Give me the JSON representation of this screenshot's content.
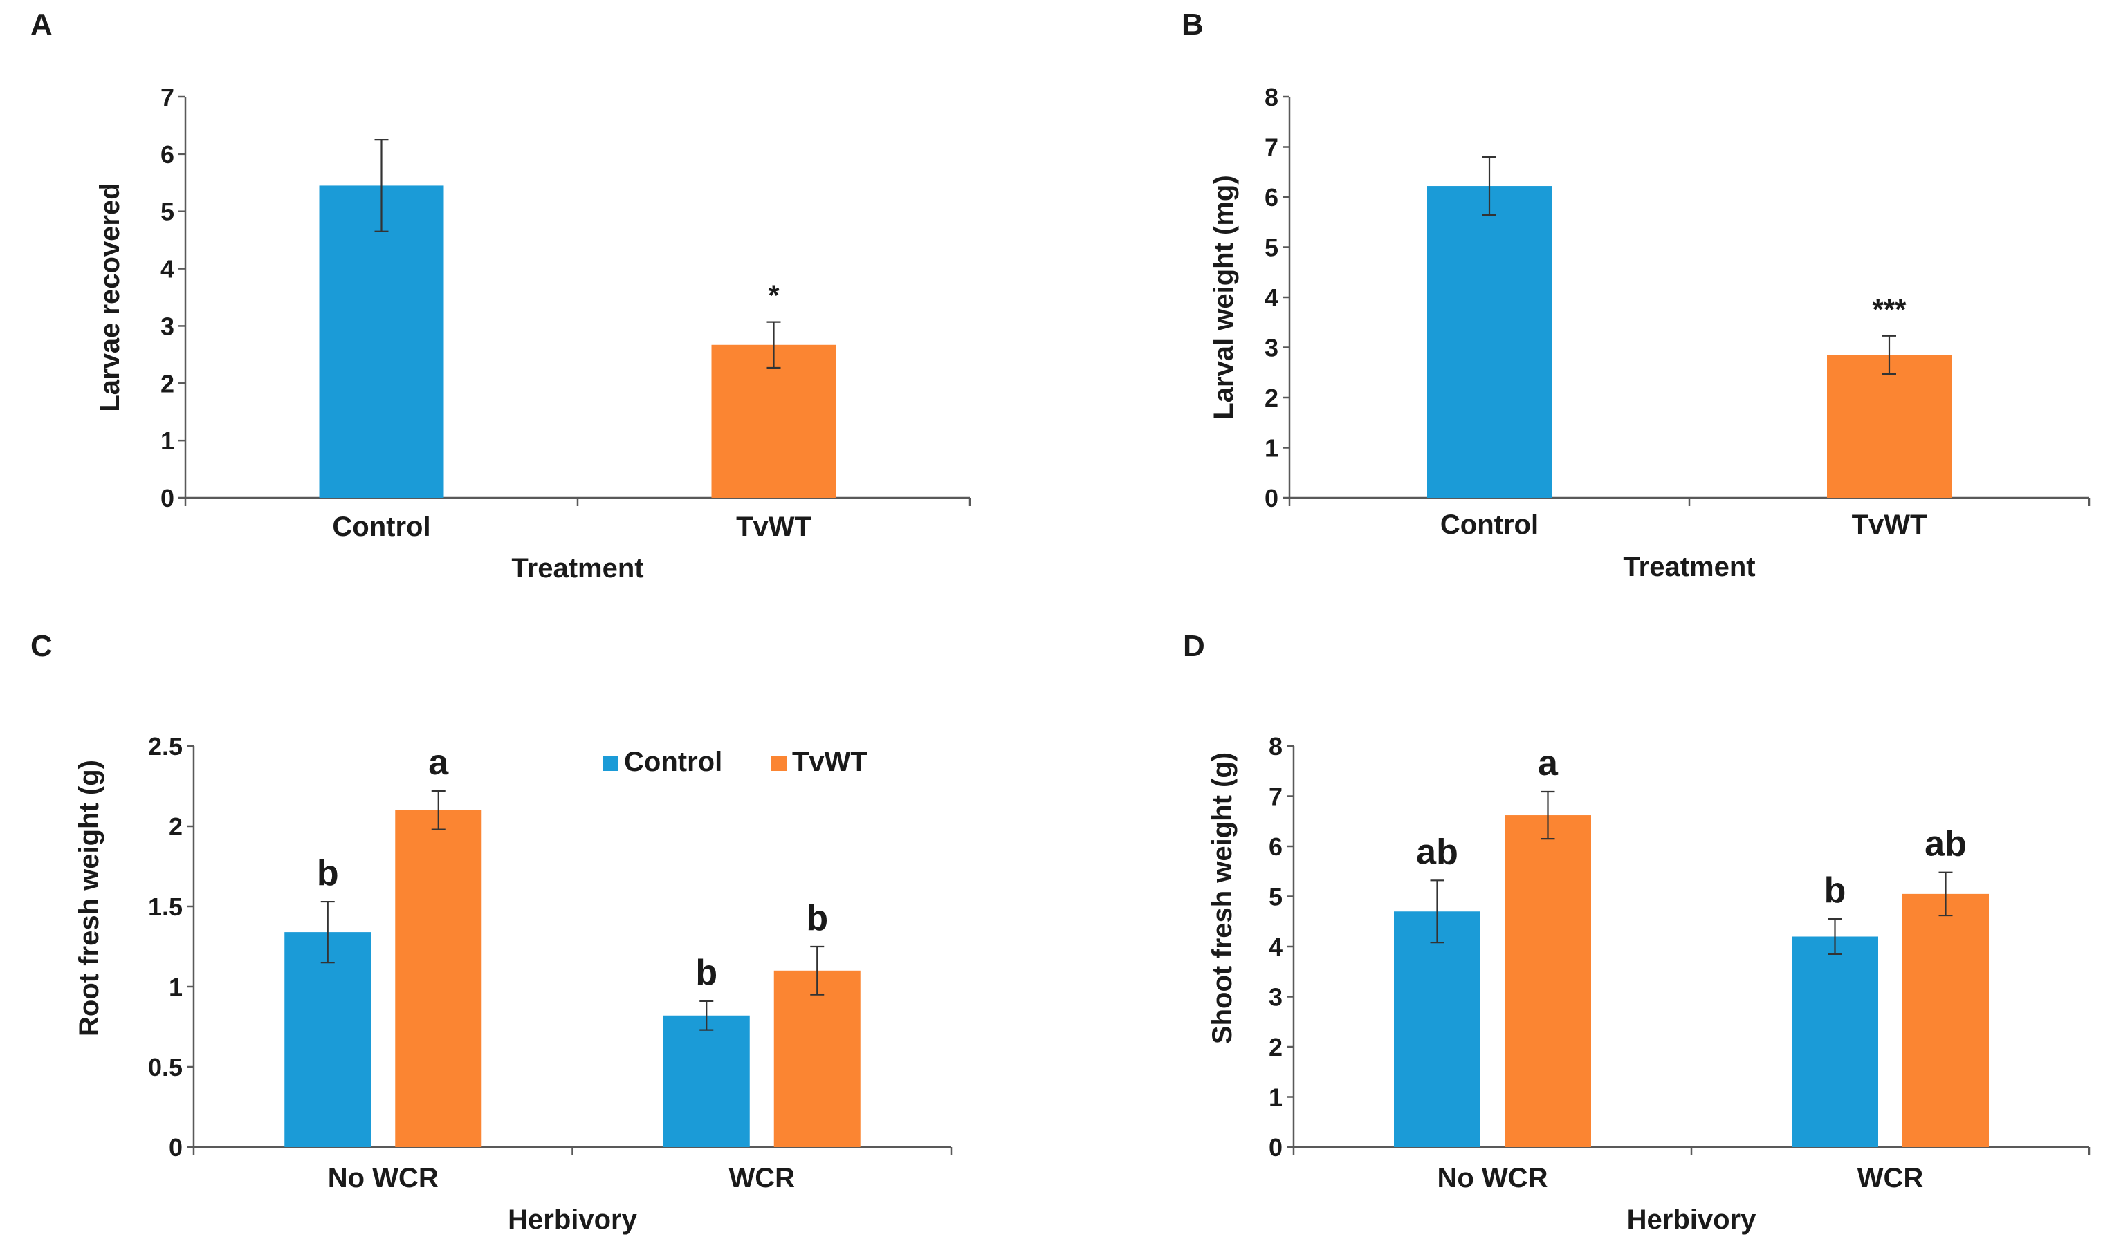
{
  "colors": {
    "control": "#1b9bd7",
    "tvwt": "#fb8532",
    "axis": "#595959",
    "text": "#1a1a1a"
  },
  "legend": {
    "items": [
      "Control",
      "TvWT"
    ]
  },
  "chart_data": [
    {
      "panel_label": "A",
      "type": "bar",
      "categories": [
        "Control",
        "TvWT"
      ],
      "series": [
        {
          "name": "Larvae recovered",
          "values": [
            5.45,
            2.67
          ],
          "errors": [
            0.8,
            0.4
          ],
          "bar_colors": [
            "control",
            "tvwt"
          ]
        }
      ],
      "annotations": [
        "",
        "*"
      ],
      "xlabel": "Treatment",
      "ylabel": "Larvae recovered",
      "ylim": [
        0,
        7
      ],
      "yticks": [
        "0",
        "1",
        "2",
        "3",
        "4",
        "5",
        "6",
        "7"
      ]
    },
    {
      "panel_label": "B",
      "type": "bar",
      "categories": [
        "Control",
        "TvWT"
      ],
      "series": [
        {
          "name": "Larval weight (mg)",
          "values": [
            6.22,
            2.85
          ],
          "errors": [
            0.58,
            0.38
          ],
          "bar_colors": [
            "control",
            "tvwt"
          ]
        }
      ],
      "annotations": [
        "",
        "***"
      ],
      "xlabel": "Treatment",
      "ylabel": "Larval weight (mg)",
      "ylim": [
        0,
        8
      ],
      "yticks": [
        "0",
        "1",
        "2",
        "3",
        "4",
        "5",
        "6",
        "7",
        "8"
      ]
    },
    {
      "panel_label": "C",
      "type": "bar",
      "categories": [
        "No WCR",
        "WCR"
      ],
      "series": [
        {
          "name": "Control",
          "values": [
            1.34,
            0.82
          ],
          "errors": [
            0.19,
            0.09
          ],
          "letters": [
            "b",
            "b"
          ]
        },
        {
          "name": "TvWT",
          "values": [
            2.1,
            1.1
          ],
          "errors": [
            0.12,
            0.15
          ],
          "letters": [
            "a",
            "b"
          ]
        }
      ],
      "xlabel": "Herbivory",
      "ylabel": "Root fresh weight (g)",
      "ylim": [
        0,
        2.5
      ],
      "yticks": [
        "0",
        "0.5",
        "1",
        "1.5",
        "2",
        "2.5"
      ],
      "legend": true
    },
    {
      "panel_label": "D",
      "type": "bar",
      "categories": [
        "No WCR",
        "WCR"
      ],
      "series": [
        {
          "name": "Control",
          "values": [
            4.7,
            4.2
          ],
          "errors": [
            0.62,
            0.35
          ],
          "letters": [
            "ab",
            "b"
          ]
        },
        {
          "name": "TvWT",
          "values": [
            6.62,
            5.05
          ],
          "errors": [
            0.47,
            0.43
          ],
          "letters": [
            "a",
            "ab"
          ]
        }
      ],
      "xlabel": "Herbivory",
      "ylabel": "Shoot fresh weight (g)",
      "ylim": [
        0,
        8
      ],
      "yticks": [
        "0",
        "1",
        "2",
        "3",
        "4",
        "5",
        "6",
        "7",
        "8"
      ]
    }
  ]
}
